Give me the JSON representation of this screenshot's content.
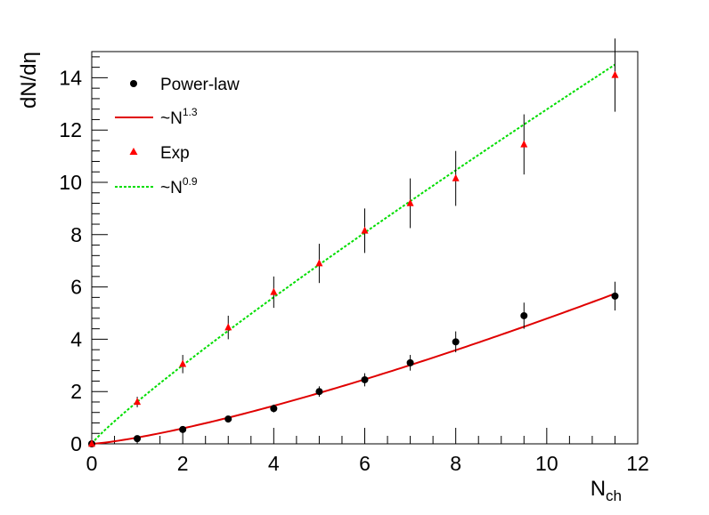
{
  "chart_data": {
    "type": "scatter",
    "xlabel": "N",
    "xlabel_sub": "ch",
    "ylabel": "dN/dη",
    "xlim": [
      0,
      12
    ],
    "ylim": [
      0,
      15
    ],
    "x_ticks": [
      "0",
      "2",
      "4",
      "6",
      "8",
      "10",
      "12"
    ],
    "y_ticks": [
      "0",
      "2",
      "4",
      "6",
      "8",
      "10",
      "12",
      "14"
    ],
    "grid": false,
    "legend_position": "top-left",
    "legend": [
      {
        "label": "Power-law",
        "sup": "",
        "kind": "marker-circle",
        "color": "#000000"
      },
      {
        "label": "~N",
        "sup": "1.3",
        "kind": "line-solid",
        "color": "#e00000"
      },
      {
        "label": "Exp",
        "sup": "",
        "kind": "marker-triangle",
        "color": "#ff0000"
      },
      {
        "label": "~N",
        "sup": "0.9",
        "kind": "line-dotted",
        "color": "#00dd00"
      }
    ],
    "series": [
      {
        "name": "Power-law",
        "marker": "circle",
        "color": "#000000",
        "x": [
          0,
          1,
          2,
          3,
          4,
          5,
          6,
          7,
          8,
          9.5,
          11.5
        ],
        "y": [
          0,
          0.2,
          0.55,
          0.95,
          1.35,
          2.0,
          2.45,
          3.1,
          3.9,
          4.9,
          5.65
        ],
        "err": [
          0,
          0.05,
          0.1,
          0.1,
          0.15,
          0.2,
          0.25,
          0.3,
          0.4,
          0.5,
          0.55
        ]
      },
      {
        "name": "Exp",
        "marker": "triangle",
        "color": "#ff0000",
        "x": [
          0,
          1,
          2,
          3,
          4,
          5,
          6,
          7,
          8,
          9.5,
          11.5
        ],
        "y": [
          0,
          1.6,
          3.05,
          4.45,
          5.8,
          6.9,
          8.15,
          9.2,
          10.15,
          11.45,
          14.1
        ],
        "err": [
          0,
          0.2,
          0.35,
          0.45,
          0.6,
          0.75,
          0.85,
          0.95,
          1.05,
          1.15,
          1.4
        ]
      }
    ],
    "fits": [
      {
        "name": "~N^1.3",
        "color": "#e00000",
        "style": "solid",
        "coef": 0.24,
        "power": 1.3,
        "xmax": 11.5
      },
      {
        "name": "~N^0.9",
        "color": "#00dd00",
        "style": "dotted",
        "coef": 1.61,
        "power": 0.9,
        "xmax": 11.5
      }
    ]
  }
}
